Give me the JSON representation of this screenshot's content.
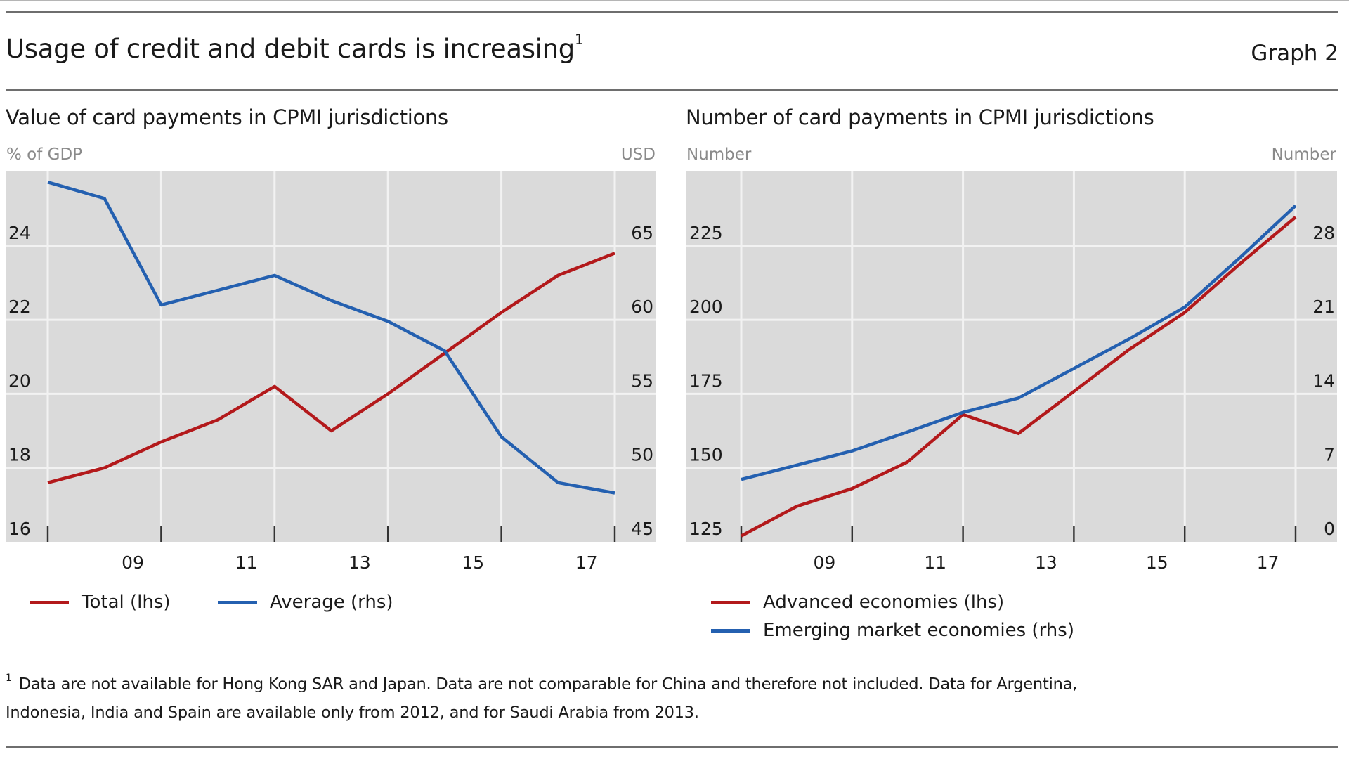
{
  "header": {
    "title": "Usage of credit and debit cards is increasing",
    "title_footnote_mark": "1",
    "graph_label": "Graph 2"
  },
  "colors": {
    "red_series": "#b3191b",
    "blue_series": "#2460b0",
    "plot_background": "#dadada",
    "gridline": "#f2f2f2",
    "rule": "#6e6e6e"
  },
  "chart_data": [
    {
      "type": "line",
      "title": "Value of card payments in CPMI jurisdictions",
      "ylabel_left": "% of GDP",
      "ylabel_right": "USD",
      "x": [
        2007,
        2008,
        2009,
        2010,
        2011,
        2012,
        2013,
        2014,
        2015,
        2016,
        2017
      ],
      "x_tick_labels": [
        "09",
        "11",
        "13",
        "15",
        "17"
      ],
      "x_tick_label_years": [
        2009,
        2011,
        2013,
        2015,
        2017
      ],
      "y_left": {
        "ticks": [
          16,
          18,
          20,
          22,
          24
        ],
        "range": [
          16,
          26
        ]
      },
      "y_right": {
        "ticks": [
          45,
          50,
          55,
          60,
          65
        ],
        "range": [
          45,
          70
        ]
      },
      "grid": true,
      "legend_position": "bottom",
      "series": [
        {
          "name": "Total (lhs)",
          "axis": "left",
          "color": "#b3191b",
          "values": [
            17.6,
            18.0,
            18.7,
            19.3,
            20.2,
            19.0,
            20.0,
            21.1,
            22.2,
            23.2,
            23.8
          ]
        },
        {
          "name": "Average (rhs)",
          "axis": "right",
          "color": "#2460b0",
          "values": [
            69.3,
            68.2,
            61.0,
            62.0,
            63.0,
            61.3,
            59.9,
            57.9,
            52.1,
            49.0,
            48.3
          ]
        }
      ]
    },
    {
      "type": "line",
      "title": "Number of card payments in CPMI jurisdictions",
      "ylabel_left": "Number",
      "ylabel_right": "Number",
      "x": [
        2007,
        2008,
        2009,
        2010,
        2011,
        2012,
        2013,
        2014,
        2015,
        2016,
        2017
      ],
      "x_tick_labels": [
        "09",
        "11",
        "13",
        "15",
        "17"
      ],
      "x_tick_label_years": [
        2009,
        2011,
        2013,
        2015,
        2017
      ],
      "y_left": {
        "ticks": [
          125,
          150,
          175,
          200,
          225
        ],
        "range": [
          125,
          250
        ]
      },
      "y_right": {
        "ticks": [
          0,
          7,
          14,
          21,
          28
        ],
        "range": [
          0,
          35
        ]
      },
      "grid": true,
      "legend_position": "bottom",
      "series": [
        {
          "name": "Advanced economies (lhs)",
          "axis": "left",
          "color": "#b3191b",
          "values": [
            127,
            137,
            143,
            152,
            168,
            161.6,
            175.8,
            190,
            202.5,
            219,
            234.7
          ]
        },
        {
          "name": "Emerging market economies (rhs)",
          "axis": "right",
          "color": "#2460b0",
          "values": [
            5.9,
            7.25,
            8.6,
            10.4,
            12.25,
            13.6,
            16.4,
            19.2,
            22.2,
            26.9,
            31.8
          ]
        }
      ]
    }
  ],
  "footnote": {
    "mark": "1",
    "line1": "Data are not available for Hong Kong SAR and Japan. Data are not comparable for China and therefore not included. Data for Argentina,",
    "line2": "Indonesia, India and Spain are available only from 2012, and for Saudi Arabia from 2013."
  }
}
